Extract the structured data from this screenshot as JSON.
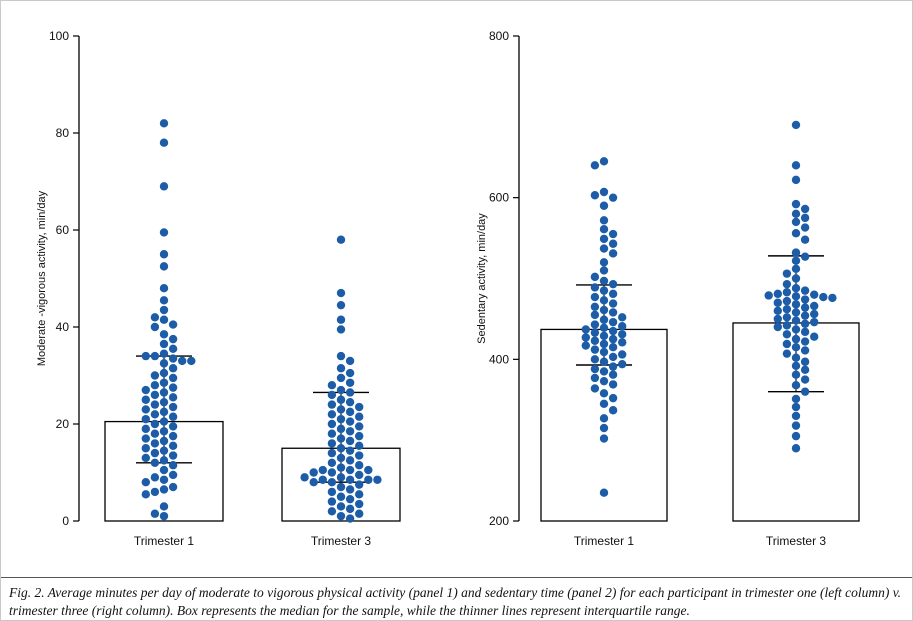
{
  "figure": {
    "caption": "Fig. 2. Average minutes per day of moderate to vigorous physical activity (panel 1) and sedentary time (panel 2) for each participant in trimester one (left column) v. trimester three (right column). Box represents the median for the sample, while the thinner lines represent interquartile range."
  },
  "colors": {
    "dot": "#1d5da8",
    "axis": "#000000",
    "bar_fill": "#ffffff",
    "bar_border": "#000000"
  },
  "chart_data": [
    {
      "type": "scatter",
      "subtype": "beeswarm-with-median-bar-and-iqr",
      "title": "",
      "xlabel": "",
      "ylabel": "Moderate -vigorous activity, min/day",
      "ylim": [
        0,
        100
      ],
      "yticks": [
        0,
        20,
        40,
        60,
        80,
        100
      ],
      "categories": [
        "Trimester 1",
        "Trimester 3"
      ],
      "series": [
        {
          "name": "Trimester 1",
          "median": 20.5,
          "iqr": [
            12,
            34
          ],
          "points": [
            82,
            78,
            69,
            59.5,
            55,
            52.5,
            48,
            45.5,
            43.5,
            42,
            41.5,
            40.5,
            40,
            38.5,
            37.5,
            36.5,
            35.5,
            34.5,
            34,
            34,
            33.5,
            33,
            33,
            32.5,
            31.5,
            30.5,
            30,
            29.5,
            28.5,
            28,
            27.5,
            27,
            26.5,
            26,
            25.5,
            25,
            24.5,
            24,
            23.5,
            23,
            22.5,
            22,
            21.5,
            21,
            20.5,
            20,
            19.5,
            19,
            18.5,
            18,
            17.5,
            17,
            16.5,
            16,
            15.5,
            15,
            14.5,
            14,
            13.5,
            13,
            12.5,
            12,
            11.5,
            10.5,
            9.5,
            9,
            8.5,
            8,
            7,
            6.5,
            6,
            5.5,
            3,
            1.5,
            1
          ]
        },
        {
          "name": "Trimester 3",
          "median": 15,
          "iqr": [
            8,
            26.5
          ],
          "points": [
            58,
            47,
            44.5,
            41.5,
            39.5,
            34,
            33,
            31.5,
            30.5,
            29.5,
            28.5,
            28,
            27,
            26.5,
            26,
            25,
            24.5,
            24,
            23.5,
            23,
            22.5,
            22,
            21.5,
            21,
            20.5,
            20,
            19.5,
            19,
            18.5,
            18,
            17.5,
            17,
            16.5,
            16,
            15.5,
            15,
            14.5,
            14,
            13.5,
            13,
            12.5,
            12,
            11.5,
            11,
            10.5,
            10.5,
            10.5,
            10,
            10,
            9.5,
            9,
            9,
            8.5,
            8.5,
            8.5,
            8.5,
            8,
            8,
            7.5,
            7,
            6.5,
            6,
            5.5,
            5,
            4.5,
            4,
            3.5,
            3,
            2.5,
            2,
            1.5,
            1,
            0.5
          ]
        }
      ]
    },
    {
      "type": "scatter",
      "subtype": "beeswarm-with-median-bar-and-iqr",
      "title": "",
      "xlabel": "",
      "ylabel": "Sedentary activity, min/day",
      "ylim": [
        200,
        800
      ],
      "yticks": [
        200,
        400,
        600,
        800
      ],
      "categories": [
        "Trimester 1",
        "Trimester 3"
      ],
      "series": [
        {
          "name": "Trimester 1",
          "median": 437,
          "iqr": [
            393,
            492
          ],
          "points": [
            645,
            640,
            607,
            603,
            600,
            590,
            572,
            561,
            555,
            549,
            543,
            537,
            531,
            520,
            510,
            502,
            497,
            493,
            489,
            485,
            481,
            477,
            473,
            469,
            465,
            461,
            458,
            455,
            452,
            449,
            446,
            443,
            441,
            439,
            437,
            435,
            433,
            431,
            429,
            427,
            425,
            423,
            421,
            419,
            417,
            415,
            412,
            409,
            406,
            403,
            400,
            397,
            394,
            391,
            388,
            385,
            381,
            377,
            373,
            369,
            364,
            358,
            352,
            345,
            337,
            327,
            315,
            302,
            235
          ]
        },
        {
          "name": "Trimester 3",
          "median": 445,
          "iqr": [
            360,
            528
          ],
          "points": [
            690,
            640,
            622,
            592,
            586,
            580,
            575,
            570,
            563,
            556,
            548,
            532,
            527,
            522,
            512,
            506,
            500,
            493,
            488,
            485,
            483,
            481,
            480,
            479,
            478,
            477,
            476,
            474,
            472,
            470,
            468,
            466,
            464,
            462,
            460,
            458,
            456,
            454,
            452,
            450,
            448,
            446,
            444,
            442,
            440,
            437,
            434,
            431,
            428,
            425,
            422,
            419,
            415,
            411,
            407,
            402,
            397,
            392,
            387,
            381,
            375,
            368,
            360,
            351,
            341,
            330,
            318,
            305,
            290
          ]
        }
      ]
    }
  ]
}
